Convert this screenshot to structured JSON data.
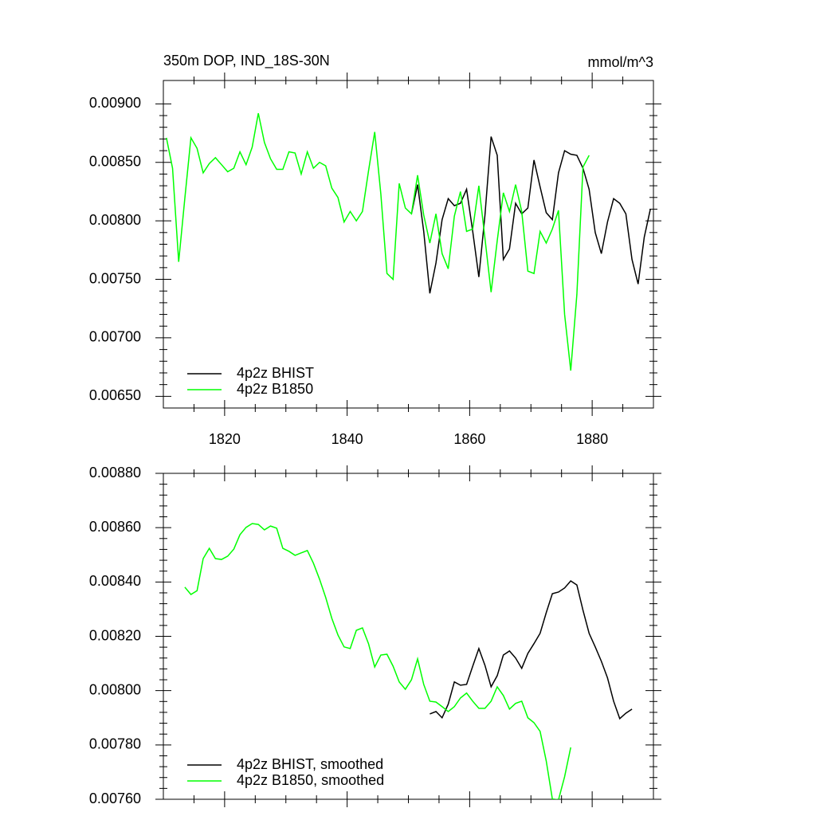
{
  "chart_data": [
    {
      "type": "line",
      "title": "350m DOP, IND_18S-30N",
      "subtitle": "mmol/m^3",
      "x": [
        1810.5,
        1811.5,
        1812.5,
        1813.5,
        1814.5,
        1815.5,
        1816.5,
        1817.5,
        1818.5,
        1819.5,
        1820.5,
        1821.5,
        1822.5,
        1823.5,
        1824.5,
        1825.5,
        1826.5,
        1827.5,
        1828.5,
        1829.5,
        1830.5,
        1831.5,
        1832.5,
        1833.5,
        1834.5,
        1835.5,
        1836.5,
        1837.5,
        1838.5,
        1839.5,
        1840.5,
        1841.5,
        1842.5,
        1843.5,
        1844.5,
        1845.5,
        1846.5,
        1847.5,
        1848.5,
        1849.5,
        1850.5,
        1851.5,
        1852.5,
        1853.5,
        1854.5,
        1855.5,
        1856.5,
        1857.5,
        1858.5,
        1859.5,
        1860.5,
        1861.5,
        1862.5,
        1863.5,
        1864.5,
        1865.5,
        1866.5,
        1867.5,
        1868.5,
        1869.5,
        1870.5,
        1871.5,
        1872.5,
        1873.5,
        1874.5,
        1875.5,
        1876.5,
        1877.5,
        1878.5,
        1879.5,
        1880.5,
        1881.5,
        1882.5,
        1883.5,
        1884.5,
        1885.5,
        1886.5,
        1887.5,
        1888.5,
        1889.5
      ],
      "series": [
        {
          "name": "4p2z BHIST",
          "color": "#000000",
          "values": [
            null,
            null,
            null,
            null,
            null,
            null,
            null,
            null,
            null,
            null,
            null,
            null,
            null,
            null,
            null,
            null,
            null,
            null,
            null,
            null,
            null,
            null,
            null,
            null,
            null,
            null,
            null,
            null,
            null,
            null,
            null,
            null,
            null,
            null,
            null,
            null,
            null,
            null,
            null,
            null,
            0.00806,
            0.00831,
            0.00791,
            0.00738,
            0.00764,
            0.00801,
            0.00819,
            0.00813,
            0.00815,
            0.00827,
            0.00791,
            0.00752,
            0.00805,
            0.00872,
            0.00856,
            0.00767,
            0.00776,
            0.00815,
            0.00806,
            0.00811,
            0.00852,
            0.00829,
            0.00807,
            0.00801,
            0.00841,
            0.0086,
            0.00857,
            0.00856,
            0.00845,
            0.00827,
            0.0079,
            0.00772,
            0.00799,
            0.00819,
            0.00815,
            0.00806,
            0.00767,
            0.00746,
            0.00786,
            0.0081
          ]
        },
        {
          "name": "4p2z B1850",
          "color": "#00ff00",
          "values": [
            0.00871,
            0.00845,
            0.00765,
            0.00819,
            0.00871,
            0.00862,
            0.00841,
            0.00849,
            0.00854,
            0.00848,
            0.00842,
            0.00845,
            0.00859,
            0.00848,
            0.00863,
            0.00892,
            0.00867,
            0.00853,
            0.00844,
            0.00844,
            0.00859,
            0.00858,
            0.0084,
            0.00859,
            0.00845,
            0.0085,
            0.00847,
            0.00828,
            0.0082,
            0.00799,
            0.00808,
            0.008,
            0.00808,
            0.00843,
            0.00876,
            0.00823,
            0.00755,
            0.0075,
            0.00832,
            0.00811,
            0.00806,
            0.00839,
            0.00805,
            0.00781,
            0.00806,
            0.00772,
            0.00759,
            0.00804,
            0.00825,
            0.00791,
            0.00793,
            0.0083,
            0.00785,
            0.00739,
            0.00783,
            0.00824,
            0.00808,
            0.00831,
            0.00808,
            0.00757,
            0.00755,
            0.00791,
            0.00781,
            0.00793,
            0.00809,
            0.0072,
            0.00672,
            0.00737,
            0.00846,
            0.00856,
            null,
            null,
            null,
            null,
            null,
            null,
            null,
            null,
            null,
            null
          ]
        }
      ],
      "xlim": [
        1810,
        1890
      ],
      "xticks": [
        1820,
        1840,
        1860,
        1880
      ],
      "ylim": [
        0.0064,
        0.0092
      ],
      "yticks": [
        {
          "value": 0.0065,
          "label": "0.00650"
        },
        {
          "value": 0.007,
          "label": "0.00700"
        },
        {
          "value": 0.0075,
          "label": "0.00750"
        },
        {
          "value": 0.008,
          "label": "0.00800"
        },
        {
          "value": 0.0085,
          "label": "0.00850"
        },
        {
          "value": 0.009,
          "label": "0.00900"
        }
      ],
      "legend": "bottom-left"
    },
    {
      "type": "line",
      "x": [
        1813.5,
        1814.5,
        1815.5,
        1816.5,
        1817.5,
        1818.5,
        1819.5,
        1820.5,
        1821.5,
        1822.5,
        1823.5,
        1824.5,
        1825.5,
        1826.5,
        1827.5,
        1828.5,
        1829.5,
        1830.5,
        1831.5,
        1832.5,
        1833.5,
        1834.5,
        1835.5,
        1836.5,
        1837.5,
        1838.5,
        1839.5,
        1840.5,
        1841.5,
        1842.5,
        1843.5,
        1844.5,
        1845.5,
        1846.5,
        1847.5,
        1848.5,
        1849.5,
        1850.5,
        1851.5,
        1852.5,
        1853.5,
        1854.5,
        1855.5,
        1856.5,
        1857.5,
        1858.5,
        1859.5,
        1860.5,
        1861.5,
        1862.5,
        1863.5,
        1864.5,
        1865.5,
        1866.5,
        1867.5,
        1868.5,
        1869.5,
        1870.5,
        1871.5,
        1872.5,
        1873.5,
        1874.5,
        1875.5,
        1876.5,
        1877.5,
        1878.5,
        1879.5,
        1880.5,
        1881.5,
        1882.5,
        1883.5,
        1884.5,
        1885.5,
        1886.5
      ],
      "series": [
        {
          "name": "4p2z BHIST, smoothed",
          "color": "#000000",
          "values": [
            null,
            null,
            null,
            null,
            null,
            null,
            null,
            null,
            null,
            null,
            null,
            null,
            null,
            null,
            null,
            null,
            null,
            null,
            null,
            null,
            null,
            null,
            null,
            null,
            null,
            null,
            null,
            null,
            null,
            null,
            null,
            null,
            null,
            null,
            null,
            null,
            null,
            null,
            null,
            null,
            0.007914,
            0.007923,
            0.0079,
            0.00795,
            0.008032,
            0.00802,
            0.008023,
            0.00809,
            0.008155,
            0.008093,
            0.008014,
            0.008055,
            0.008131,
            0.008146,
            0.00812,
            0.008082,
            0.008137,
            0.008173,
            0.008211,
            0.008287,
            0.008357,
            0.008363,
            0.008378,
            0.008404,
            0.008389,
            0.008296,
            0.008211,
            0.008161,
            0.008108,
            0.008047,
            0.007961,
            0.007897,
            0.007917,
            0.007932
          ]
        },
        {
          "name": "4p2z B1850, smoothed",
          "color": "#00ff00",
          "values": [
            0.008381,
            0.008354,
            0.008368,
            0.008486,
            0.008524,
            0.008486,
            0.008483,
            0.008495,
            0.008521,
            0.008574,
            0.008601,
            0.008615,
            0.008612,
            0.008592,
            0.008606,
            0.008598,
            0.008524,
            0.008513,
            0.008498,
            0.008507,
            0.008516,
            0.008469,
            0.00841,
            0.008343,
            0.008266,
            0.008205,
            0.008161,
            0.008155,
            0.008222,
            0.008231,
            0.008172,
            0.008087,
            0.008131,
            0.008134,
            0.00809,
            0.008032,
            0.008005,
            0.00804,
            0.008117,
            0.008023,
            0.007961,
            0.007958,
            0.007941,
            0.007923,
            0.007941,
            0.007973,
            0.007991,
            0.007961,
            0.007935,
            0.007935,
            0.007961,
            0.008014,
            0.007982,
            0.007932,
            0.007953,
            0.007961,
            0.0079,
            0.007882,
            0.00785,
            0.007741,
            0.007601,
            0.007598,
            0.007683,
            0.007791,
            null,
            null,
            null,
            null,
            null,
            null,
            null,
            null,
            null,
            null
          ]
        }
      ],
      "xlim": [
        1810,
        1890
      ],
      "xticks": [
        1820,
        1840,
        1860,
        1880
      ],
      "ylim": [
        0.0076,
        0.0088
      ],
      "yticks": [
        {
          "value": 0.0076,
          "label": "0.00760"
        },
        {
          "value": 0.0078,
          "label": "0.00780"
        },
        {
          "value": 0.008,
          "label": "0.00800"
        },
        {
          "value": 0.0082,
          "label": "0.00820"
        },
        {
          "value": 0.0084,
          "label": "0.00840"
        },
        {
          "value": 0.0086,
          "label": "0.00860"
        },
        {
          "value": 0.0088,
          "label": "0.00880"
        }
      ],
      "legend": "bottom-left"
    }
  ]
}
